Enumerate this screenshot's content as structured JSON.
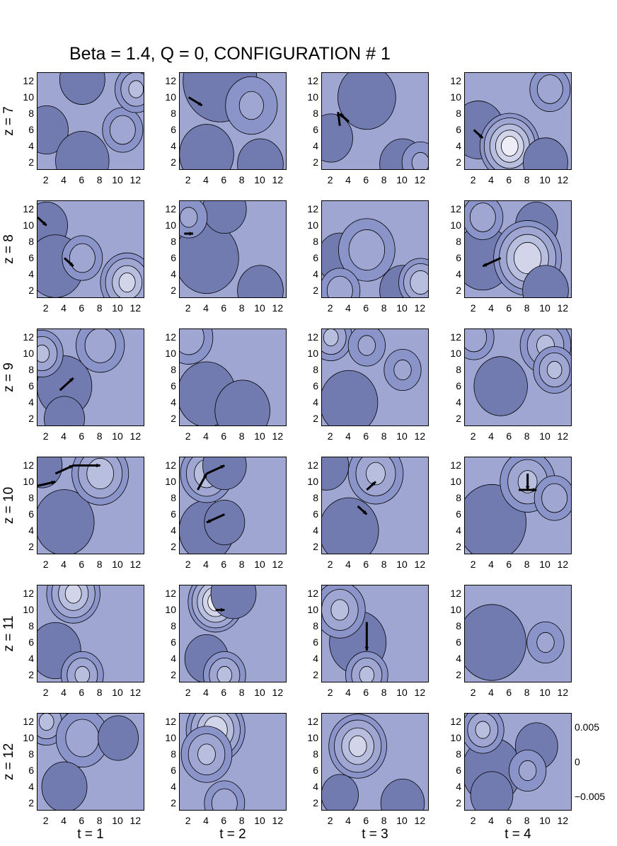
{
  "title": "Beta = 1.4,  Q = 0, CONFIGURATION # 1",
  "chart_data": {
    "type": "heatmap",
    "grid": {
      "rows": 6,
      "cols": 4
    },
    "row_labels": [
      "z = 7",
      "z = 8",
      "z = 9",
      "z = 10",
      "z = 11",
      "z = 12"
    ],
    "col_labels": [
      "t = 1",
      "t = 2",
      "t = 3",
      "t = 4"
    ],
    "x_ticks": [
      "2",
      "4",
      "6",
      "8",
      "10",
      "12"
    ],
    "y_ticks": [
      "12",
      "10",
      "8",
      "6",
      "4",
      "2"
    ],
    "xlim": [
      1,
      13
    ],
    "ylim": [
      1,
      13
    ],
    "colorbar": {
      "ticks": [
        "0.005",
        "0",
        "−0.005"
      ],
      "range": [
        -0.007,
        0.007
      ]
    },
    "colors": {
      "low": "#0a0a12",
      "mid": "#7e88c2",
      "high": "#ffffff"
    },
    "panels": [
      {
        "blobs": [
          [
            6,
            12.2,
            -0.8,
            1
          ],
          [
            2,
            6,
            -0.6,
            1
          ],
          [
            6,
            2.2,
            -0.7,
            1.2
          ],
          [
            10.5,
            6,
            0.4,
            1
          ],
          [
            12,
            11,
            0.5,
            1
          ]
        ],
        "arrows": []
      },
      {
        "blobs": [
          [
            5.5,
            12,
            -1,
            1.6
          ],
          [
            4,
            3,
            -0.8,
            1.2
          ],
          [
            10,
            1.8,
            -0.9,
            1
          ],
          [
            9,
            9,
            0.3,
            1.4
          ]
        ],
        "arrows": [
          [
            2,
            10,
            3.5,
            9
          ]
        ]
      },
      {
        "blobs": [
          [
            6,
            10,
            -0.7,
            1.3
          ],
          [
            2,
            5,
            -0.6,
            1
          ],
          [
            10,
            1.8,
            -0.9,
            1
          ],
          [
            12,
            2,
            0.3,
            1
          ]
        ],
        "arrows": [
          [
            3,
            6.5,
            2.8,
            8.2
          ],
          [
            4,
            7,
            3,
            8
          ]
        ]
      },
      {
        "blobs": [
          [
            2.5,
            6,
            -0.6,
            1.2
          ],
          [
            6,
            4,
            0.9,
            1.3
          ],
          [
            10,
            2,
            -0.7,
            1
          ],
          [
            10.5,
            11,
            0.4,
            1
          ]
        ],
        "arrows": [
          [
            2,
            6,
            3,
            5
          ]
        ]
      },
      {
        "blobs": [
          [
            2,
            10,
            -0.5,
            1
          ],
          [
            3,
            5,
            -0.6,
            1.3
          ],
          [
            6,
            6,
            0.4,
            1
          ],
          [
            11,
            3,
            0.7,
            1.2
          ]
        ],
        "arrows": [
          [
            1,
            11,
            2,
            10
          ],
          [
            4,
            6,
            5,
            5
          ]
        ]
      },
      {
        "blobs": [
          [
            4,
            6,
            -0.9,
            1.4
          ],
          [
            10,
            2,
            -0.9,
            1
          ],
          [
            6,
            12,
            -0.6,
            1
          ],
          [
            2,
            11,
            0.3,
            1
          ]
        ],
        "arrows": [
          [
            1.5,
            9,
            2.5,
            9
          ]
        ]
      },
      {
        "blobs": [
          [
            3,
            6,
            -0.8,
            1
          ],
          [
            10,
            2,
            -0.9,
            1
          ],
          [
            6,
            7,
            0.4,
            1.4
          ],
          [
            3,
            2,
            0.4,
            1
          ],
          [
            12,
            3,
            0.6,
            1
          ]
        ],
        "arrows": []
      },
      {
        "blobs": [
          [
            3,
            6,
            -0.7,
            1.3
          ],
          [
            9,
            10,
            -0.5,
            1
          ],
          [
            8,
            6,
            0.8,
            1.5
          ],
          [
            3,
            11,
            0.4,
            1
          ],
          [
            10,
            2,
            -0.9,
            1
          ]
        ],
        "arrows": [
          [
            5,
            6,
            3,
            5
          ]
        ]
      },
      {
        "blobs": [
          [
            4,
            6,
            -0.9,
            1.2
          ],
          [
            1.5,
            10,
            0.5,
            1
          ],
          [
            8,
            11,
            0.4,
            1.2
          ],
          [
            4,
            2,
            -0.4,
            1
          ]
        ],
        "arrows": [
          [
            3.5,
            5.5,
            5,
            7
          ]
        ]
      },
      {
        "blobs": [
          [
            4,
            5,
            -0.8,
            1.3
          ],
          [
            2,
            12,
            0.4,
            1.2
          ],
          [
            8,
            3,
            -0.5,
            1.3
          ]
        ],
        "arrows": []
      },
      {
        "blobs": [
          [
            4,
            4,
            -0.7,
            1.3
          ],
          [
            2,
            12,
            0.5,
            1
          ],
          [
            6,
            11,
            0.3,
            1
          ],
          [
            10,
            8,
            0.3,
            1
          ]
        ],
        "arrows": []
      },
      {
        "blobs": [
          [
            5,
            6,
            -0.7,
            1.2
          ],
          [
            2,
            12,
            0.4,
            1
          ],
          [
            10,
            11,
            0.5,
            1.2
          ],
          [
            11,
            8,
            0.5,
            1
          ]
        ],
        "arrows": []
      },
      {
        "blobs": [
          [
            4,
            5,
            -0.9,
            1.3
          ],
          [
            8,
            11,
            0.6,
            1.3
          ],
          [
            1.5,
            12,
            -0.4,
            1
          ]
        ],
        "arrows": [
          [
            1,
            9.5,
            3,
            10
          ],
          [
            3,
            11,
            5,
            12
          ],
          [
            5,
            12,
            8,
            12
          ]
        ]
      },
      {
        "blobs": [
          [
            4,
            4,
            -0.9,
            1.2
          ],
          [
            4,
            11,
            0.6,
            1.2
          ],
          [
            6,
            12,
            -0.6,
            1
          ],
          [
            6,
            5,
            -0.4,
            1
          ]
        ],
        "arrows": [
          [
            3,
            9,
            4,
            11
          ],
          [
            6,
            6,
            4,
            5
          ],
          [
            4,
            11,
            6,
            12
          ]
        ]
      },
      {
        "blobs": [
          [
            4,
            4,
            -0.9,
            1.3
          ],
          [
            7,
            11,
            0.5,
            1.3
          ],
          [
            1.5,
            12,
            -0.7,
            1
          ]
        ],
        "arrows": [
          [
            6,
            9,
            7,
            10
          ],
          [
            5,
            7,
            6,
            6
          ]
        ]
      },
      {
        "blobs": [
          [
            4,
            5,
            -0.9,
            1.5
          ],
          [
            8,
            10,
            0.5,
            1.3
          ],
          [
            11,
            8,
            0.4,
            1
          ]
        ],
        "arrows": [
          [
            8,
            11,
            8,
            9
          ],
          [
            7,
            9,
            9,
            9
          ]
        ]
      },
      {
        "blobs": [
          [
            5,
            12,
            0.7,
            1.2
          ],
          [
            3,
            5,
            -0.5,
            1.2
          ],
          [
            6,
            2,
            0.5,
            1
          ]
        ],
        "arrows": []
      },
      {
        "blobs": [
          [
            5,
            11,
            0.9,
            1.2
          ],
          [
            4,
            4,
            -0.6,
            1
          ],
          [
            6,
            2,
            0.5,
            1
          ],
          [
            7,
            12,
            -0.8,
            1
          ]
        ],
        "arrows": [
          [
            5,
            10,
            6,
            10
          ]
        ]
      },
      {
        "blobs": [
          [
            5,
            6,
            -0.6,
            1.3
          ],
          [
            3,
            10,
            0.5,
            1.2
          ],
          [
            6,
            2,
            0.5,
            1
          ]
        ],
        "arrows": [
          [
            6,
            8.5,
            6,
            5
          ]
        ]
      },
      {
        "blobs": [
          [
            4,
            6,
            -0.9,
            1.5
          ],
          [
            10,
            6,
            0.3,
            1
          ]
        ],
        "arrows": []
      },
      {
        "blobs": [
          [
            2,
            12,
            0.5,
            1
          ],
          [
            6,
            10,
            0.4,
            1.3
          ],
          [
            4,
            4,
            -0.8,
            1
          ],
          [
            10,
            10,
            -0.4,
            1
          ]
        ],
        "arrows": []
      },
      {
        "blobs": [
          [
            5,
            11,
            0.8,
            1.3
          ],
          [
            4,
            8,
            0.5,
            1.2
          ],
          [
            6,
            2,
            0.4,
            1
          ]
        ],
        "arrows": []
      },
      {
        "blobs": [
          [
            5,
            9,
            0.7,
            1.3
          ],
          [
            10,
            2,
            -0.6,
            1
          ],
          [
            3,
            3,
            -0.3,
            1
          ]
        ],
        "arrows": []
      },
      {
        "blobs": [
          [
            4,
            6,
            -0.9,
            1.3
          ],
          [
            3,
            11,
            0.5,
            1
          ],
          [
            9,
            9,
            -0.5,
            1
          ],
          [
            4,
            3,
            -0.5,
            1
          ],
          [
            8,
            6,
            0.3,
            1
          ]
        ],
        "arrows": []
      }
    ]
  }
}
